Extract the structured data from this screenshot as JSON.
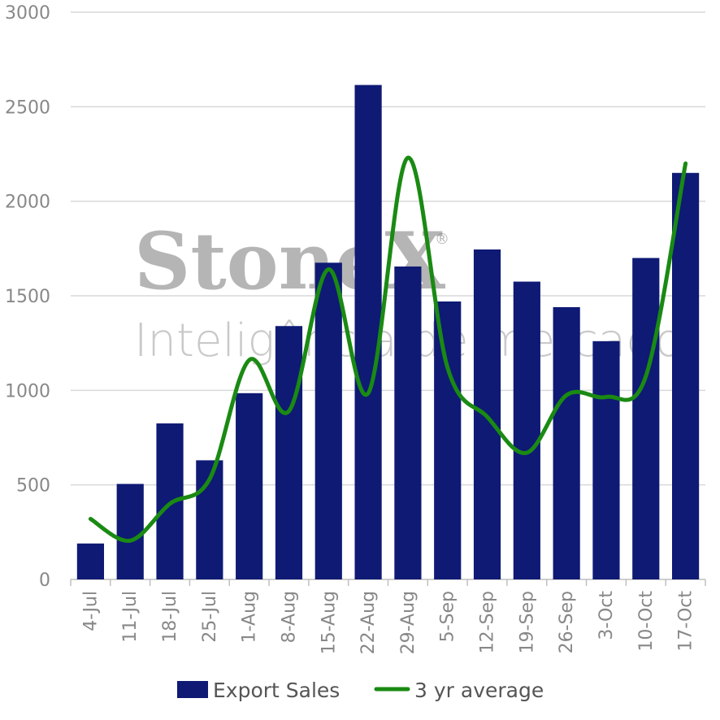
{
  "watermark": {
    "brand": "StoneX",
    "registered": "®",
    "tagline": "Inteligência de mercado"
  },
  "colors": {
    "bars": "#0e1a74",
    "line": "#1a8a13",
    "grid": "#d9d9d9",
    "axis": "#bfbfbf"
  },
  "chart_data": {
    "type": "bar",
    "title": "",
    "xlabel": "",
    "ylabel": "",
    "ylim": [
      0,
      3000
    ],
    "yticks": [
      0,
      500,
      1000,
      1500,
      2000,
      2500,
      3000
    ],
    "grid": true,
    "legend_position": "bottom",
    "categories": [
      "4-Jul",
      "11-Jul",
      "18-Jul",
      "25-Jul",
      "1-Aug",
      "8-Aug",
      "15-Aug",
      "22-Aug",
      "29-Aug",
      "5-Sep",
      "12-Sep",
      "19-Sep",
      "26-Sep",
      "3-Oct",
      "10-Oct",
      "17-Oct"
    ],
    "series": [
      {
        "name": "Export Sales",
        "type": "bar",
        "values": [
          190,
          505,
          825,
          630,
          985,
          1340,
          1675,
          2615,
          1655,
          1470,
          1745,
          1575,
          1440,
          1260,
          1700,
          2150
        ]
      },
      {
        "name": "3 yr average",
        "type": "line",
        "values": [
          320,
          205,
          400,
          530,
          1160,
          890,
          1640,
          985,
          2230,
          1120,
          860,
          670,
          975,
          965,
          1075,
          2200
        ]
      }
    ]
  }
}
